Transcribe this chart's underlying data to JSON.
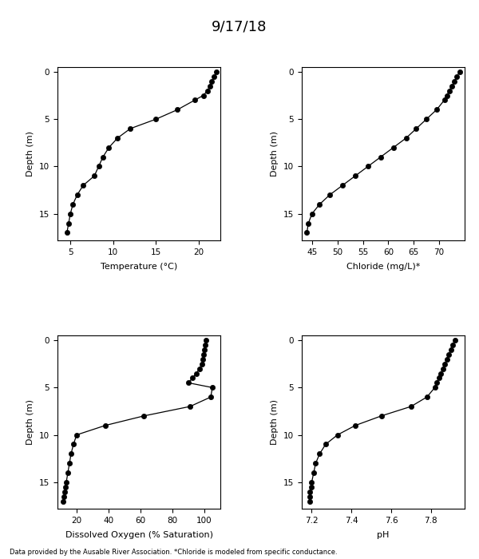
{
  "title": "9/17/18",
  "footnote": "Data provided by the Ausable River Association. *Chloride is modeled from specific conductance.",
  "temp": {
    "depth": [
      0,
      0.5,
      1,
      1.5,
      2,
      2.5,
      3,
      4,
      5,
      6,
      7,
      8,
      9,
      10,
      11,
      12,
      13,
      14,
      15,
      16,
      17
    ],
    "values": [
      22.0,
      21.8,
      21.5,
      21.3,
      21.0,
      20.5,
      19.5,
      17.5,
      15.0,
      12.0,
      10.5,
      9.5,
      8.8,
      8.3,
      7.8,
      6.5,
      5.8,
      5.3,
      5.0,
      4.8,
      4.6
    ],
    "xlabel": "Temperature (°C)",
    "xlim": [
      3.5,
      22.5
    ],
    "xticks": [
      5,
      10,
      15,
      20
    ],
    "ylim": [
      17.8,
      -0.5
    ],
    "yticks": [
      0,
      5,
      10,
      15
    ]
  },
  "chloride": {
    "depth": [
      0,
      0.5,
      1,
      1.5,
      2,
      2.5,
      3,
      4,
      5,
      6,
      7,
      8,
      9,
      10,
      11,
      12,
      13,
      14,
      15,
      16,
      17
    ],
    "values": [
      74.0,
      73.5,
      73.0,
      72.5,
      72.0,
      71.5,
      71.0,
      69.5,
      67.5,
      65.5,
      63.5,
      61.0,
      58.5,
      56.0,
      53.5,
      51.0,
      48.5,
      46.5,
      45.0,
      44.3,
      44.0
    ],
    "xlabel": "Chloride (mg/L)*",
    "xlim": [
      43,
      75
    ],
    "xticks": [
      45,
      50,
      55,
      60,
      65,
      70
    ],
    "ylim": [
      17.8,
      -0.5
    ],
    "yticks": [
      0,
      5,
      10,
      15
    ]
  },
  "do": {
    "depth": [
      0,
      0.5,
      1,
      1.5,
      2,
      2.5,
      3,
      3.5,
      4,
      4.5,
      5,
      6,
      7,
      8,
      9,
      10,
      11,
      12,
      13,
      14,
      15,
      15.5,
      16,
      16.5,
      17
    ],
    "values": [
      101.0,
      100.5,
      100.0,
      99.5,
      99.0,
      98.5,
      97.0,
      95.0,
      92.5,
      90.0,
      105.0,
      104.0,
      91.0,
      62.0,
      38.0,
      20.0,
      18.0,
      16.5,
      15.5,
      14.5,
      13.5,
      13.0,
      12.5,
      12.0,
      11.5
    ],
    "xlabel": "Dissolved Oxygen (% Saturation)",
    "xlim": [
      8,
      110
    ],
    "xticks": [
      20,
      40,
      60,
      80,
      100
    ],
    "ylim": [
      17.8,
      -0.5
    ],
    "yticks": [
      0,
      5,
      10,
      15
    ]
  },
  "ph": {
    "depth": [
      0,
      0.5,
      1,
      1.5,
      2,
      2.5,
      3,
      3.5,
      4,
      4.5,
      5,
      6,
      7,
      8,
      9,
      10,
      11,
      12,
      13,
      14,
      15,
      15.5,
      16,
      16.5,
      17
    ],
    "values": [
      7.92,
      7.91,
      7.9,
      7.89,
      7.88,
      7.87,
      7.86,
      7.85,
      7.84,
      7.83,
      7.82,
      7.78,
      7.7,
      7.55,
      7.42,
      7.33,
      7.27,
      7.24,
      7.22,
      7.21,
      7.2,
      7.2,
      7.19,
      7.19,
      7.19
    ],
    "xlabel": "pH",
    "xlim": [
      7.15,
      7.97
    ],
    "xticks": [
      7.2,
      7.4,
      7.6,
      7.8
    ],
    "ylim": [
      17.8,
      -0.5
    ],
    "yticks": [
      0,
      5,
      10,
      15
    ]
  }
}
